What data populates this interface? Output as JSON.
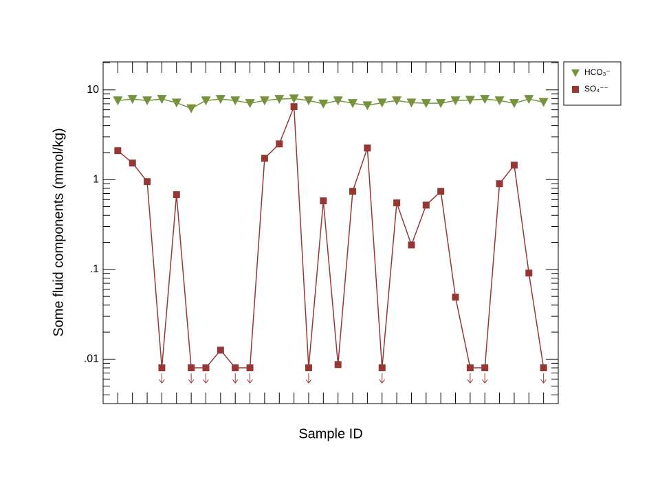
{
  "chart_data": {
    "type": "line",
    "x_label": "Sample ID",
    "y_label": "Some fluid components (mmol/kg)",
    "log_y": true,
    "xlim": [
      0,
      31
    ],
    "x": [
      1,
      2,
      3,
      4,
      5,
      6,
      7,
      8,
      9,
      10,
      11,
      12,
      13,
      14,
      15,
      16,
      17,
      18,
      19,
      20,
      21,
      22,
      23,
      24,
      25,
      26,
      27,
      28,
      29,
      30
    ],
    "categories": [
      null,
      null,
      null,
      null,
      null,
      null,
      null,
      null,
      null,
      null,
      null,
      null,
      null,
      null,
      null,
      null,
      null,
      null,
      null,
      null,
      null,
      null,
      null,
      null,
      null,
      null,
      null,
      null,
      null,
      null
    ],
    "ylim": [
      0.0032,
      20.5
    ],
    "yticks": [
      {
        "value": 0.01,
        "label": ".01"
      },
      {
        "value": 0.1,
        "label": ".1"
      },
      1,
      10
    ],
    "yminorticks": [
      0.004,
      0.005,
      0.006,
      0.007,
      0.008,
      0.009,
      0.02,
      0.03,
      0.04,
      0.05,
      0.06,
      0.07,
      0.08,
      0.09,
      0.2,
      0.3,
      0.4,
      0.5,
      0.6,
      0.7,
      0.8,
      0.9,
      2,
      3,
      4,
      5,
      6,
      7,
      8,
      9,
      20
    ],
    "legend": "outside-top-right",
    "series": [
      {
        "name": "HCO₃⁻",
        "color": "#76923c",
        "marker": "triangle-down",
        "values": [
          7.6,
          7.9,
          7.6,
          7.9,
          7.2,
          6.2,
          7.6,
          7.9,
          7.6,
          7.1,
          7.6,
          7.9,
          8.0,
          7.6,
          7.0,
          7.6,
          7.1,
          6.7,
          7.2,
          7.6,
          7.2,
          7.1,
          7.1,
          7.6,
          7.7,
          7.9,
          7.6,
          7.1,
          7.9,
          7.3
        ]
      },
      {
        "name": "SO₄⁻⁻",
        "color": "#953735",
        "marker": "square",
        "values": [
          2.1,
          1.53,
          0.95,
          0.008,
          0.68,
          0.008,
          0.008,
          0.0126,
          0.008,
          0.008,
          1.73,
          2.5,
          6.5,
          0.008,
          0.58,
          0.0087,
          0.74,
          2.25,
          0.008,
          0.55,
          0.187,
          0.52,
          0.74,
          0.049,
          0.008,
          0.008,
          0.9,
          1.45,
          0.091,
          0.008
        ],
        "censored": [
          false,
          false,
          false,
          true,
          false,
          true,
          true,
          false,
          true,
          true,
          false,
          false,
          false,
          true,
          false,
          false,
          false,
          false,
          true,
          false,
          false,
          false,
          false,
          false,
          true,
          true,
          false,
          false,
          false,
          true
        ]
      }
    ]
  }
}
